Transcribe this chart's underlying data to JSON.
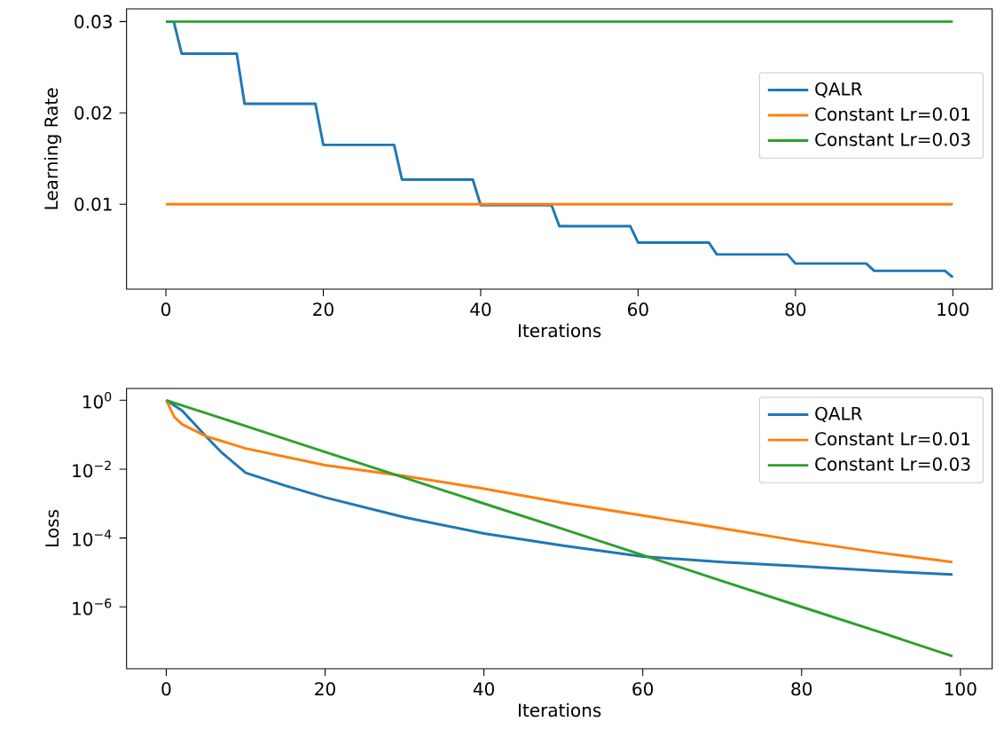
{
  "chart_data": [
    {
      "type": "line",
      "xlabel": "Iterations",
      "ylabel": "Learning Rate",
      "xlim": [
        -5,
        105
      ],
      "ylim": [
        0.0007,
        0.0314
      ],
      "xticks": [
        0,
        20,
        40,
        60,
        80,
        100
      ],
      "yticks": [
        0.01,
        0.02,
        0.03
      ],
      "legend": "right",
      "series": [
        {
          "name": "QALR",
          "color": "#1f77b4",
          "x": [
            0,
            1,
            2,
            9,
            10,
            19,
            20,
            29,
            30,
            39,
            40,
            49,
            50,
            59,
            60,
            69,
            70,
            79,
            80,
            89,
            90,
            99,
            100
          ],
          "values": [
            0.03,
            0.03,
            0.0265,
            0.0265,
            0.021,
            0.021,
            0.0165,
            0.0165,
            0.0127,
            0.0127,
            0.0099,
            0.0099,
            0.0076,
            0.0076,
            0.0058,
            0.0058,
            0.0045,
            0.0045,
            0.0035,
            0.0035,
            0.0027,
            0.0027,
            0.002
          ]
        },
        {
          "name": "Constant Lr=0.01",
          "color": "#ff7f0e",
          "x": [
            0,
            100
          ],
          "values": [
            0.01,
            0.01
          ]
        },
        {
          "name": "Constant Lr=0.03",
          "color": "#2ca02c",
          "x": [
            0,
            100
          ],
          "values": [
            0.03,
            0.03
          ]
        }
      ]
    },
    {
      "type": "line",
      "xlabel": "Iterations",
      "ylabel": "Loss",
      "log": "y",
      "xlim": [
        -5,
        104
      ],
      "ylim": [
        1.6e-08,
        2.2
      ],
      "xticks": [
        0,
        20,
        40,
        60,
        80,
        100
      ],
      "yticks": [
        {
          "value": 1,
          "label": "10$^{0}$"
        },
        {
          "value": 0.01,
          "label": "10$^{−2}$"
        },
        {
          "value": 0.0001,
          "label": "10$^{−4}$"
        },
        {
          "value": 1e-06,
          "label": "10$^{−6}$"
        }
      ],
      "legend": "top right",
      "series": [
        {
          "name": "QALR",
          "color": "#1f77b4",
          "x": [
            0,
            2,
            5,
            7,
            10,
            15,
            20,
            30,
            40,
            50,
            60,
            70,
            80,
            90,
            99
          ],
          "values": [
            1,
            0.5,
            0.09,
            0.03,
            0.0078,
            0.0033,
            0.0015,
            0.0004,
            0.000135,
            6e-05,
            2.9e-05,
            2e-05,
            1.5e-05,
            1.1e-05,
            8.7e-06
          ]
        },
        {
          "name": "Constant Lr=0.01",
          "color": "#ff7f0e",
          "x": [
            0,
            1,
            2,
            5,
            10,
            20,
            30,
            40,
            50,
            60,
            70,
            80,
            90,
            99
          ],
          "values": [
            1,
            0.33,
            0.2,
            0.09,
            0.04,
            0.013,
            0.0063,
            0.0027,
            0.00105,
            0.00045,
            0.00019,
            8e-05,
            3.7e-05,
            2e-05
          ]
        },
        {
          "name": "Constant Lr=0.03",
          "color": "#2ca02c",
          "x": [
            0,
            10,
            20,
            30,
            40,
            50,
            60,
            70,
            80,
            90,
            99
          ],
          "values": [
            1,
            0.178,
            0.0316,
            0.0056,
            0.001,
            0.00018,
            3.2e-05,
            5.6e-06,
            1e-06,
            1.8e-07,
            3.7e-08
          ]
        }
      ]
    }
  ]
}
